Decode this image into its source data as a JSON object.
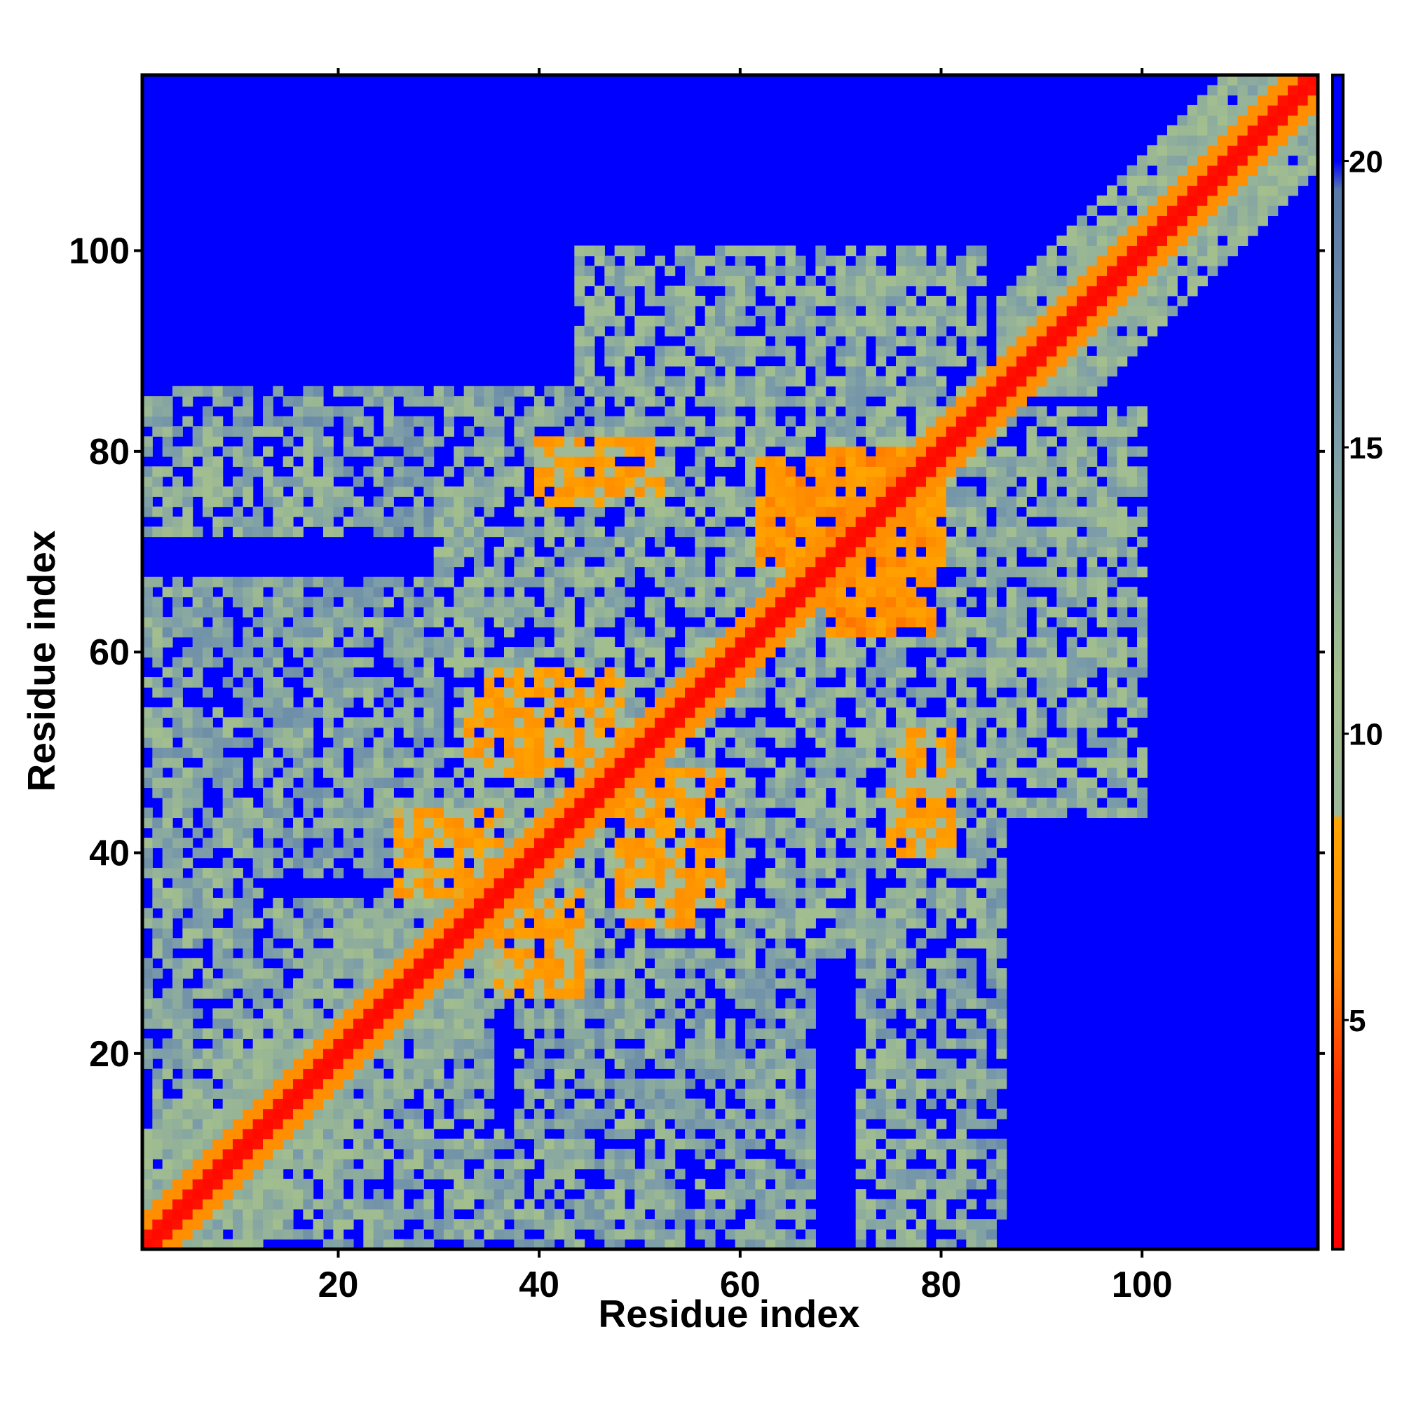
{
  "chart_data": {
    "type": "heatmap",
    "title": "",
    "xlabel": "Residue index",
    "ylabel": "Residue index",
    "n_residues": 117,
    "xlim": [
      0.5,
      117.5
    ],
    "ylim": [
      0.5,
      117.5
    ],
    "x_ticks": [
      20,
      40,
      60,
      80,
      100
    ],
    "y_ticks": [
      20,
      40,
      60,
      80,
      100
    ],
    "colorbar": {
      "range": [
        1,
        21.5
      ],
      "ticks": [
        5,
        10,
        15,
        20
      ],
      "stops": [
        {
          "value": 1.0,
          "color": "#ff0000"
        },
        {
          "value": 4.0,
          "color": "#ff3300"
        },
        {
          "value": 6.0,
          "color": "#ff8800"
        },
        {
          "value": 8.5,
          "color": "#ffa500"
        },
        {
          "value": 8.6,
          "color": "#9db89a"
        },
        {
          "value": 11.0,
          "color": "#a3bf8e"
        },
        {
          "value": 15.0,
          "color": "#7d9ea8"
        },
        {
          "value": 19.5,
          "color": "#5878a8"
        },
        {
          "value": 20.0,
          "color": "#0000ff"
        },
        {
          "value": 21.5,
          "color": "#0000ff"
        }
      ]
    },
    "background_value": 21,
    "description_of_values": "Symmetric residue-residue distance map; red along the diagonal (small distances), orange/green contacts off-diagonal, blue beyond cutoff.",
    "contact_regions": [
      {
        "x": [
          1,
          117
        ],
        "y": [
          1,
          117
        ],
        "diag_width": 1.2,
        "value": 2
      },
      {
        "x": [
          1,
          117
        ],
        "y": [
          1,
          117
        ],
        "diag_width": 3.2,
        "value": 6.5
      },
      {
        "x": [
          86,
          117
        ],
        "y": [
          86,
          117
        ],
        "diag_width": 9,
        "value": 12.5
      },
      {
        "x": [
          1,
          45
        ],
        "y": [
          1,
          45
        ],
        "diag_width": 11,
        "value": 13
      },
      {
        "x": [
          64,
          80
        ],
        "y": [
          69,
          79
        ],
        "value": 7
      },
      {
        "x": [
          69,
          79
        ],
        "y": [
          62,
          72
        ],
        "value": 7
      },
      {
        "x": [
          35,
          48
        ],
        "y": [
          49,
          58
        ],
        "value": 8
      },
      {
        "x": [
          26,
          36
        ],
        "y": [
          36,
          44
        ],
        "value": 8
      },
      {
        "x": [
          48,
          55
        ],
        "y": [
          33,
          45
        ],
        "value": 8
      },
      {
        "x": [
          40,
          46
        ],
        "y": [
          75,
          81
        ],
        "value": 8
      },
      {
        "x": [
          76,
          81
        ],
        "y": [
          44,
          52
        ],
        "value": 8
      },
      {
        "x": [
          2,
          20
        ],
        "y": [
          72,
          82
        ],
        "value": 13
      },
      {
        "x": [
          2,
          12
        ],
        "y": [
          1,
          45
        ],
        "value": 13.5
      },
      {
        "x": [
          30,
          100
        ],
        "y": [
          44,
          84
        ],
        "value": 13
      },
      {
        "x": [
          38,
          67
        ],
        "y": [
          1,
          40
        ],
        "value": 14
      },
      {
        "x": [
          72,
          86
        ],
        "y": [
          1,
          44
        ],
        "value": 14.5
      },
      {
        "x": [
          18,
          35
        ],
        "y": [
          1,
          22
        ],
        "value": 14
      },
      {
        "x": [
          55,
          72
        ],
        "y": [
          80,
          95
        ],
        "value": 14.5
      },
      {
        "x": [
          85,
          96
        ],
        "y": [
          44,
          68
        ],
        "value": 14
      }
    ]
  }
}
